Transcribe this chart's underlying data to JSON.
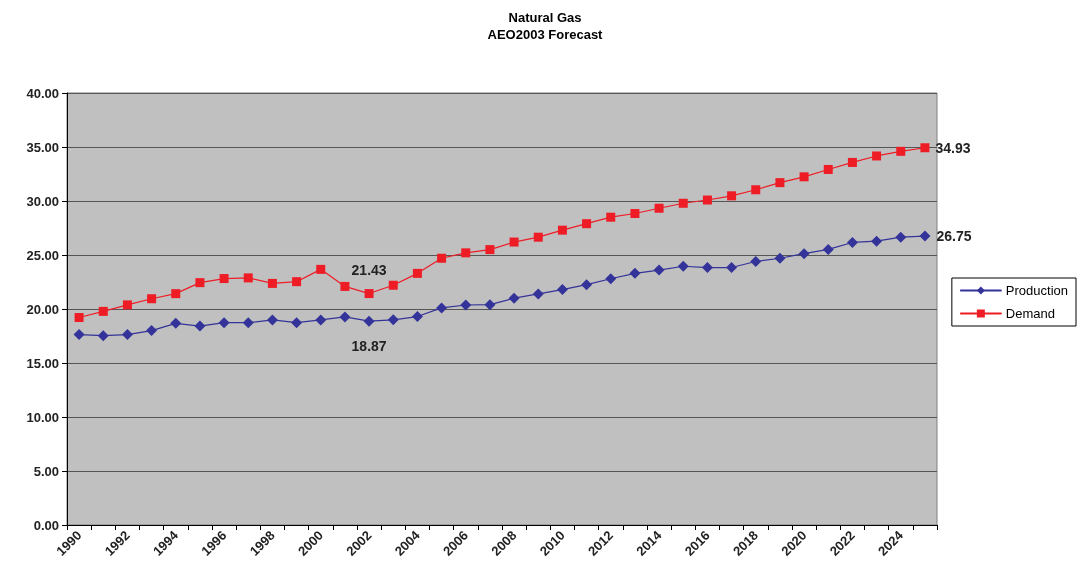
{
  "chart_data": {
    "type": "line",
    "title": "Natural Gas",
    "subtitle": "AEO2003 Forecast",
    "categories": [
      "1990",
      null,
      "1992",
      null,
      "1994",
      null,
      "1996",
      null,
      "1998",
      null,
      "2000",
      null,
      "2002",
      null,
      "2004",
      null,
      "2006",
      null,
      "2008",
      null,
      "2010",
      null,
      "2012",
      null,
      "2014",
      null,
      "2016",
      null,
      "2018",
      null,
      "2020",
      null,
      "2022",
      null,
      "2024",
      null
    ],
    "series": [
      {
        "name": "Production",
        "color": "#333399",
        "marker": "diamond",
        "values": [
          17.63,
          17.53,
          17.63,
          18.0,
          18.67,
          18.42,
          18.73,
          18.73,
          18.99,
          18.73,
          18.99,
          19.27,
          18.87,
          19.0,
          19.3,
          20.1,
          20.37,
          20.4,
          21.0,
          21.4,
          21.8,
          22.25,
          22.8,
          23.3,
          23.6,
          23.96,
          23.84,
          23.84,
          24.4,
          24.7,
          25.12,
          25.52,
          26.16,
          26.28,
          26.65,
          26.75
        ],
        "value_labels": [
          null,
          null,
          null,
          null,
          null,
          null,
          null,
          null,
          null,
          null,
          null,
          null,
          "18.87",
          null,
          null,
          null,
          null,
          null,
          null,
          null,
          null,
          null,
          null,
          null,
          null,
          null,
          null,
          null,
          null,
          null,
          null,
          null,
          null,
          null,
          null,
          "26.75"
        ]
      },
      {
        "name": "Demand",
        "color": "#ee1c25",
        "marker": "square",
        "values": [
          19.21,
          19.78,
          20.38,
          20.95,
          21.42,
          22.44,
          22.82,
          22.88,
          22.37,
          22.53,
          23.67,
          22.09,
          21.43,
          22.2,
          23.3,
          24.7,
          25.2,
          25.5,
          26.2,
          26.65,
          27.3,
          27.9,
          28.5,
          28.84,
          29.33,
          29.79,
          30.09,
          30.48,
          31.04,
          31.7,
          32.24,
          32.92,
          33.57,
          34.17,
          34.6,
          34.93
        ],
        "value_labels": [
          null,
          null,
          null,
          null,
          null,
          null,
          null,
          null,
          null,
          null,
          null,
          null,
          "21.43",
          null,
          null,
          null,
          null,
          null,
          null,
          null,
          null,
          null,
          null,
          null,
          null,
          null,
          null,
          null,
          null,
          null,
          null,
          null,
          null,
          null,
          null,
          "34.93"
        ]
      }
    ],
    "ylim": [
      0,
      40
    ],
    "yticks": [
      {
        "value": 0,
        "label": "0.00"
      },
      {
        "value": 5,
        "label": "5.00"
      },
      {
        "value": 10,
        "label": "10.00"
      },
      {
        "value": 15,
        "label": "15.00"
      },
      {
        "value": 20,
        "label": "20.00"
      },
      {
        "value": 25,
        "label": "25.00"
      },
      {
        "value": 30,
        "label": "30.00"
      },
      {
        "value": 35,
        "label": "35.00"
      },
      {
        "value": 40,
        "label": "40.00"
      }
    ],
    "grid": "y",
    "legend": "right",
    "line_style": "solid"
  }
}
